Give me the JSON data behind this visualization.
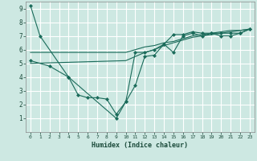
{
  "title": "",
  "xlabel": "Humidex (Indice chaleur)",
  "ylabel": "",
  "background_color": "#cde8e2",
  "grid_color": "#ffffff",
  "line_color": "#1a6b5a",
  "xlim": [
    -0.5,
    23.5
  ],
  "ylim": [
    0,
    9.5
  ],
  "xticks": [
    0,
    1,
    2,
    3,
    4,
    5,
    6,
    7,
    8,
    9,
    10,
    11,
    12,
    13,
    14,
    15,
    16,
    17,
    18,
    19,
    20,
    21,
    22,
    23
  ],
  "yticks": [
    1,
    2,
    3,
    4,
    5,
    6,
    7,
    8,
    9
  ],
  "series": [
    {
      "x": [
        0,
        1,
        4,
        9,
        10,
        11,
        12,
        13,
        14,
        15,
        16,
        17,
        18,
        19,
        20,
        21,
        22,
        23
      ],
      "y": [
        9.2,
        7.0,
        4.0,
        1.0,
        2.2,
        3.4,
        5.5,
        5.6,
        6.4,
        5.8,
        7.0,
        7.2,
        7.0,
        7.2,
        7.0,
        7.0,
        7.2,
        7.5
      ],
      "marker": "D",
      "markersize": 2.0
    },
    {
      "x": [
        0,
        2,
        4,
        5,
        6,
        7,
        8,
        9,
        10,
        11,
        12,
        13,
        14,
        15,
        16,
        17,
        18,
        19,
        20,
        21,
        22,
        23
      ],
      "y": [
        5.2,
        4.8,
        4.0,
        2.7,
        2.5,
        2.5,
        2.4,
        1.3,
        2.2,
        5.8,
        5.8,
        6.0,
        6.4,
        7.1,
        7.1,
        7.3,
        7.2,
        7.2,
        7.2,
        7.2,
        7.2,
        7.5
      ],
      "marker": "D",
      "markersize": 2.0
    },
    {
      "x": [
        0,
        10,
        11,
        12,
        13,
        14,
        15,
        16,
        17,
        18,
        19,
        20,
        21,
        22,
        23
      ],
      "y": [
        5.0,
        5.2,
        5.5,
        5.8,
        6.0,
        6.3,
        6.5,
        6.7,
        6.9,
        7.0,
        7.1,
        7.2,
        7.3,
        7.4,
        7.5
      ],
      "marker": null,
      "markersize": 0
    },
    {
      "x": [
        0,
        10,
        11,
        12,
        13,
        14,
        15,
        16,
        17,
        18,
        19,
        20,
        21,
        22,
        23
      ],
      "y": [
        5.8,
        5.8,
        6.0,
        6.2,
        6.3,
        6.5,
        6.6,
        6.8,
        7.0,
        7.1,
        7.2,
        7.3,
        7.4,
        7.4,
        7.5
      ],
      "marker": null,
      "markersize": 0
    }
  ]
}
